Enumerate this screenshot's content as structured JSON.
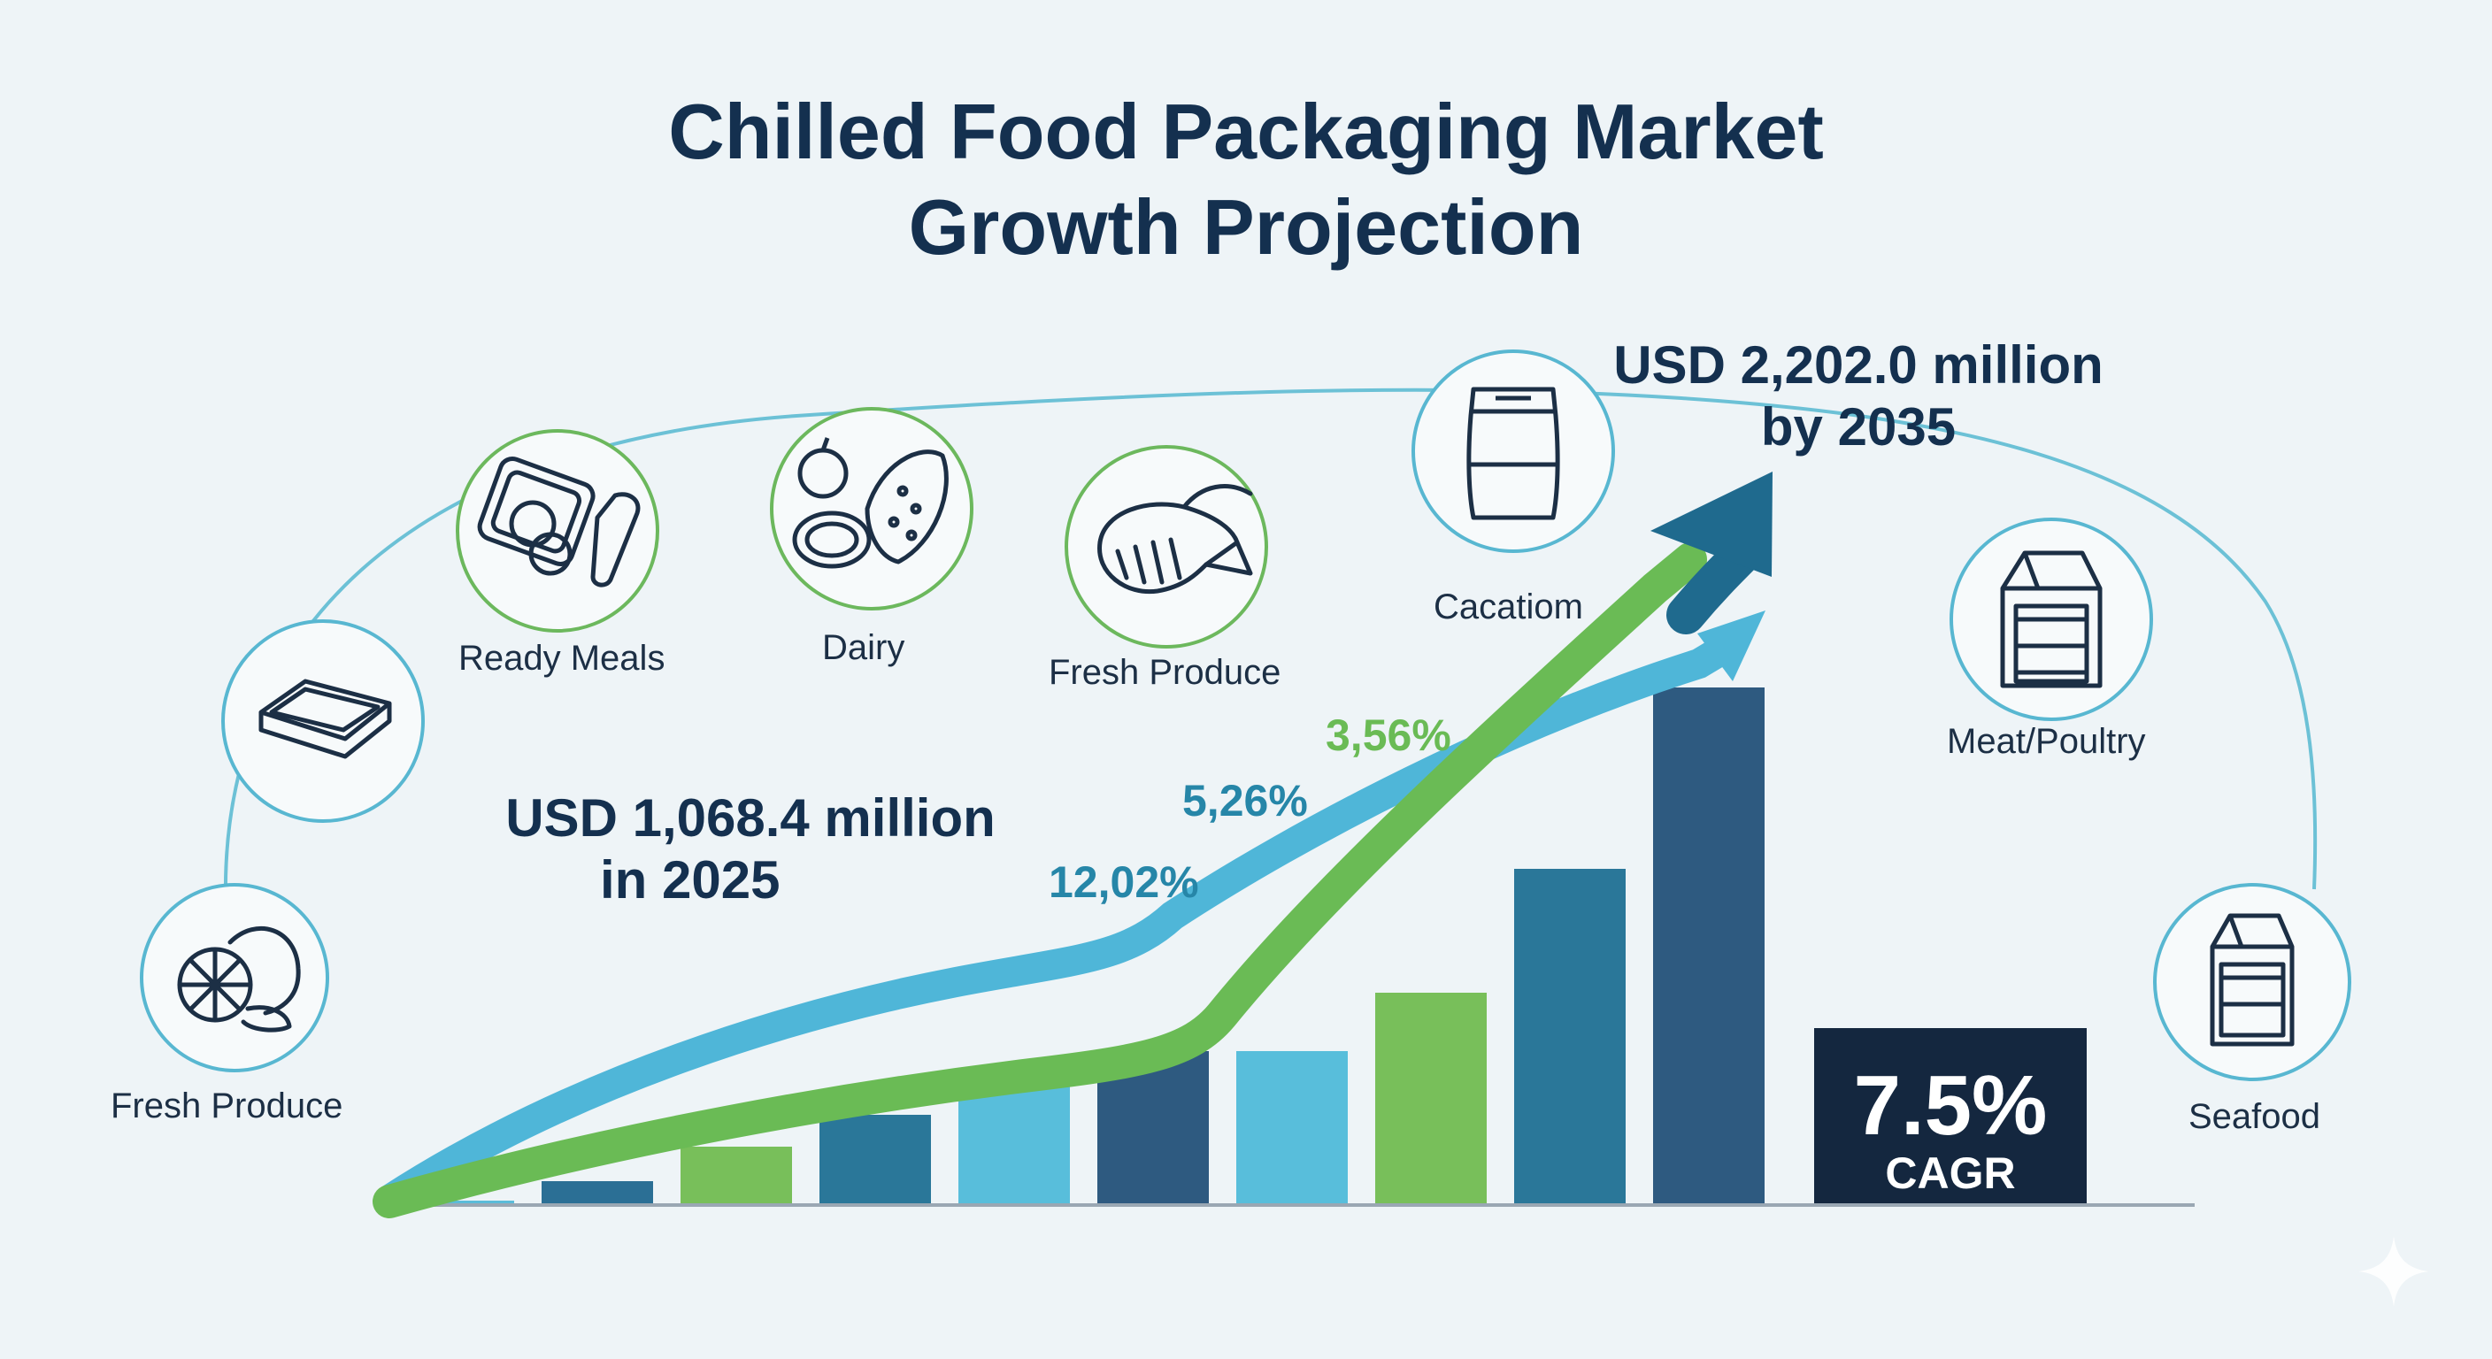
{
  "title": {
    "line1": "Chilled Food Packaging Market",
    "line2": "Growth Projection"
  },
  "annotations": {
    "start_value": "USD 1,068.4 million",
    "start_year": "in 2025",
    "end_value": "USD 2,202.0 million",
    "end_year": "by 2035",
    "pct_a": "12,02%",
    "pct_b": "5,26%",
    "pct_c": "3,56%",
    "cagr_value": "7.5%",
    "cagr_label": "CAGR"
  },
  "segments": [
    {
      "label": "Fresh Produce",
      "icon": "produce-icon",
      "ring": "#58b7d1"
    },
    {
      "label": "",
      "icon": "tray-icon",
      "ring": "#58b7d1"
    },
    {
      "label": "Ready Meals",
      "icon": "ready-meals-icon",
      "ring": "#6cb85d"
    },
    {
      "label": "Dairy",
      "icon": "dairy-icon",
      "ring": "#6cb85d"
    },
    {
      "label": "Fresh Produce",
      "icon": "shrimp-icon",
      "ring": "#6cb85d"
    },
    {
      "label": "Cacatiom",
      "icon": "pouch-icon",
      "ring": "#58b7d1"
    },
    {
      "label": "Meat/Poultry",
      "icon": "carton-icon",
      "ring": "#58b7d1"
    },
    {
      "label": "Seafood",
      "icon": "carton-icon",
      "ring": "#58b7d1"
    }
  ],
  "chart_data": {
    "type": "bar",
    "values": [
      3,
      25,
      64,
      100,
      132,
      172,
      172,
      238,
      378,
      583
    ],
    "colors": [
      "#5bbcd9",
      "#2b6f95",
      "#78bf5a",
      "#2a7799",
      "#58bedb",
      "#2e5a80",
      "#58bedb",
      "#78bf5a",
      "#2a7799",
      "#2e5a80"
    ],
    "ylim": [
      0,
      620
    ],
    "lines": [
      {
        "name": "",
        "color": "#4fb6d8"
      },
      {
        "name": "",
        "color": "#6abb55"
      }
    ],
    "arrow_color": "#1f6a8e"
  },
  "colors": {
    "background": "#eef4f7",
    "title": "#14304f",
    "arc": "#6cc1d6",
    "pct_blue": "#2686a8",
    "pct_green": "#6abb55",
    "cagr_box": "#14273f"
  }
}
